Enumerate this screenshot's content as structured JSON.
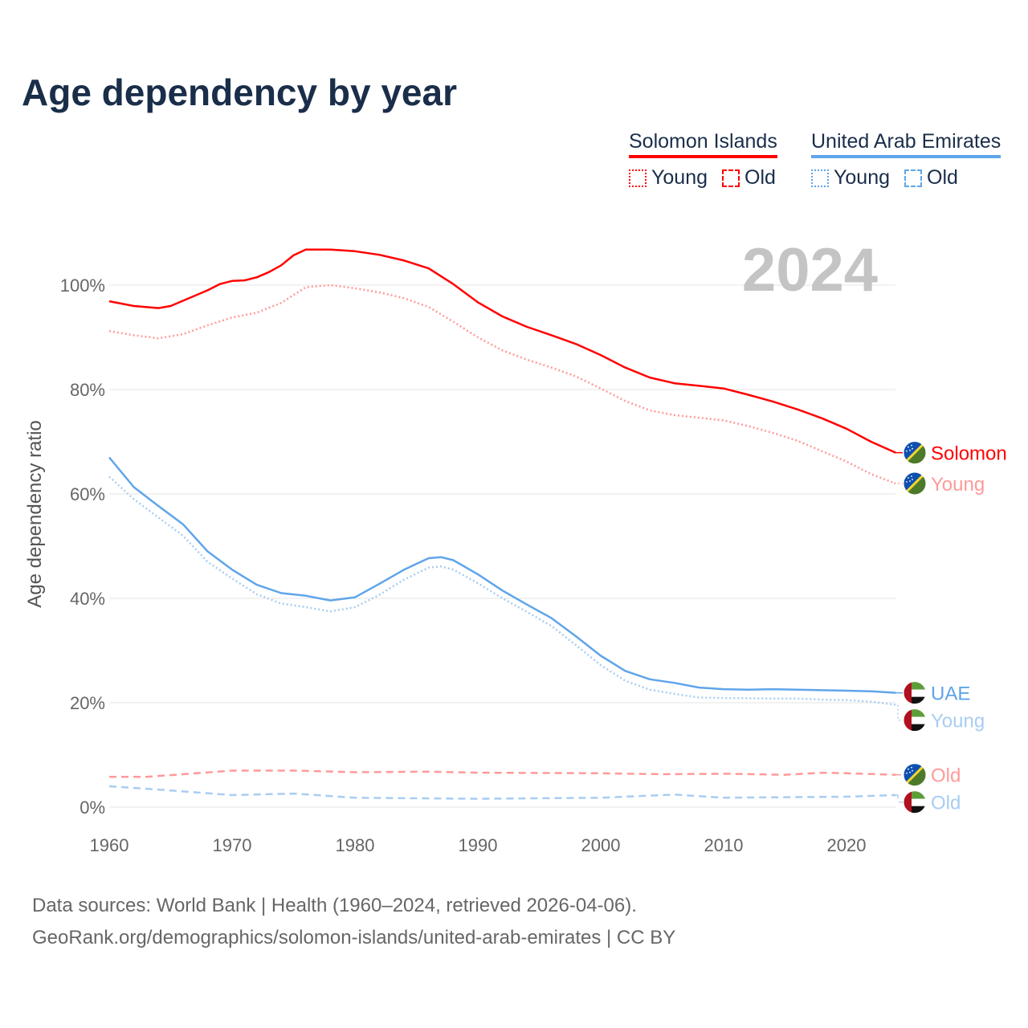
{
  "title": "Age dependency by year",
  "legend": [
    {
      "country": "Solomon Islands",
      "color": "#ff0000",
      "light": "#ff9a9a",
      "items": [
        "Young",
        "Old"
      ]
    },
    {
      "country": "United Arab Emirates",
      "color": "#5fa5ea",
      "light": "#a8cdf2",
      "items": [
        "Young",
        "Old"
      ]
    }
  ],
  "footer": {
    "sources": "Data sources: World Bank | Health (1960–2024, retrieved 2026-04-06).",
    "link": "GeoRank.org/demographics/solomon-islands/united-arab-emirates | CC BY"
  },
  "chart_data": {
    "type": "line",
    "title": "Age dependency by year",
    "year_label": "2024",
    "ylabel": "Age dependency ratio",
    "xlabel": "",
    "xlim": [
      1960,
      2024
    ],
    "ylim": [
      0,
      110
    ],
    "x_ticks": [
      "1960",
      "1970",
      "1980",
      "1990",
      "2000",
      "2010",
      "2020"
    ],
    "y_ticks": [
      "0%",
      "20%",
      "40%",
      "60%",
      "80%",
      "100%"
    ],
    "grid": true,
    "series": [
      {
        "name": "Solomon Islands",
        "label": "Solomon",
        "flag": "solomon-islands",
        "style": "solid",
        "color": "#ff0000",
        "x": [
          1960,
          1962,
          1964,
          1965,
          1966,
          1968,
          1969,
          1970,
          1971,
          1972,
          1973,
          1974,
          1975,
          1976,
          1978,
          1980,
          1982,
          1984,
          1986,
          1988,
          1990,
          1992,
          1994,
          1996,
          1998,
          2000,
          2002,
          2004,
          2006,
          2008,
          2010,
          2012,
          2014,
          2016,
          2018,
          2020,
          2022,
          2024
        ],
        "values": [
          96.9,
          96.0,
          95.6,
          96.0,
          97.0,
          99.0,
          100.2,
          100.8,
          100.9,
          101.5,
          102.5,
          103.8,
          105.7,
          106.8,
          106.8,
          106.5,
          105.8,
          104.7,
          103.2,
          100.2,
          96.7,
          94.0,
          92.0,
          90.4,
          88.7,
          86.6,
          84.2,
          82.3,
          81.2,
          80.7,
          80.2,
          79.0,
          77.7,
          76.2,
          74.5,
          72.5,
          70.0,
          67.9
        ]
      },
      {
        "name": "Solomon Islands Young",
        "label": "Young",
        "flag": "solomon-islands",
        "style": "dotted",
        "color": "#ff9a9a",
        "x": [
          1960,
          1962,
          1964,
          1966,
          1968,
          1970,
          1972,
          1974,
          1976,
          1978,
          1980,
          1982,
          1984,
          1986,
          1988,
          1990,
          1992,
          1994,
          1996,
          1998,
          2000,
          2002,
          2004,
          2006,
          2008,
          2010,
          2012,
          2014,
          2016,
          2018,
          2020,
          2022,
          2024
        ],
        "values": [
          91.2,
          90.4,
          89.8,
          90.6,
          92.3,
          93.8,
          94.7,
          96.6,
          99.6,
          100.0,
          99.4,
          98.6,
          97.5,
          95.8,
          93.0,
          90.0,
          87.5,
          85.7,
          84.2,
          82.5,
          80.2,
          77.8,
          76.0,
          75.1,
          74.6,
          74.1,
          73.0,
          71.7,
          70.2,
          68.2,
          66.2,
          63.8,
          62.0
        ]
      },
      {
        "name": "Solomon Islands Old",
        "label": "Old",
        "flag": "solomon-islands",
        "style": "dashed",
        "color": "#ff9a9a",
        "x": [
          1960,
          1963,
          1966,
          1970,
          1975,
          1980,
          1986,
          1990,
          2000,
          2005,
          2010,
          2015,
          2018,
          2020,
          2024
        ],
        "values": [
          5.8,
          5.8,
          6.3,
          7.0,
          7.0,
          6.7,
          6.8,
          6.6,
          6.5,
          6.3,
          6.4,
          6.2,
          6.6,
          6.5,
          6.2
        ]
      },
      {
        "name": "United Arab Emirates",
        "label": "UAE",
        "flag": "united-arab-emirates",
        "style": "solid",
        "color": "#5fa5ea",
        "x": [
          1960,
          1962,
          1964,
          1966,
          1968,
          1970,
          1972,
          1974,
          1976,
          1978,
          1980,
          1982,
          1984,
          1986,
          1987,
          1988,
          1990,
          1992,
          1994,
          1996,
          1998,
          2000,
          2002,
          2004,
          2006,
          2008,
          2010,
          2012,
          2014,
          2016,
          2018,
          2020,
          2022,
          2024
        ],
        "values": [
          67.0,
          61.3,
          57.7,
          54.2,
          49.0,
          45.5,
          42.6,
          41.0,
          40.5,
          39.6,
          40.2,
          42.8,
          45.5,
          47.7,
          47.9,
          47.3,
          44.6,
          41.5,
          38.8,
          36.2,
          32.7,
          29.0,
          26.1,
          24.5,
          23.8,
          22.9,
          22.6,
          22.5,
          22.6,
          22.5,
          22.4,
          22.3,
          22.2,
          21.9
        ]
      },
      {
        "name": "United Arab Emirates Young",
        "label": "Young",
        "flag": "united-arab-emirates",
        "style": "dotted",
        "color": "#a8cdf2",
        "x": [
          1960,
          1962,
          1964,
          1966,
          1968,
          1970,
          1972,
          1974,
          1976,
          1978,
          1980,
          1982,
          1984,
          1986,
          1987,
          1988,
          1990,
          1992,
          1994,
          1996,
          1998,
          2000,
          2002,
          2004,
          2006,
          2008,
          2010,
          2014,
          2016,
          2018,
          2020,
          2022,
          2024
        ],
        "values": [
          63.3,
          59.0,
          55.5,
          52.0,
          47.0,
          43.8,
          40.8,
          39.0,
          38.3,
          37.5,
          38.3,
          40.7,
          43.6,
          45.9,
          46.1,
          45.5,
          42.9,
          40.0,
          37.4,
          34.7,
          31.0,
          27.2,
          24.2,
          22.5,
          21.7,
          21.0,
          20.9,
          20.8,
          20.8,
          20.6,
          20.5,
          20.2,
          19.6
        ]
      },
      {
        "name": "United Arab Emirates Old",
        "label": "Old",
        "flag": "united-arab-emirates",
        "style": "dashed",
        "color": "#a8cdf2",
        "x": [
          1960,
          1965,
          1970,
          1975,
          1980,
          1990,
          2000,
          2006,
          2010,
          2020,
          2024
        ],
        "values": [
          4.0,
          3.2,
          2.3,
          2.6,
          1.8,
          1.6,
          1.8,
          2.4,
          1.8,
          2.0,
          2.3
        ]
      }
    ]
  }
}
